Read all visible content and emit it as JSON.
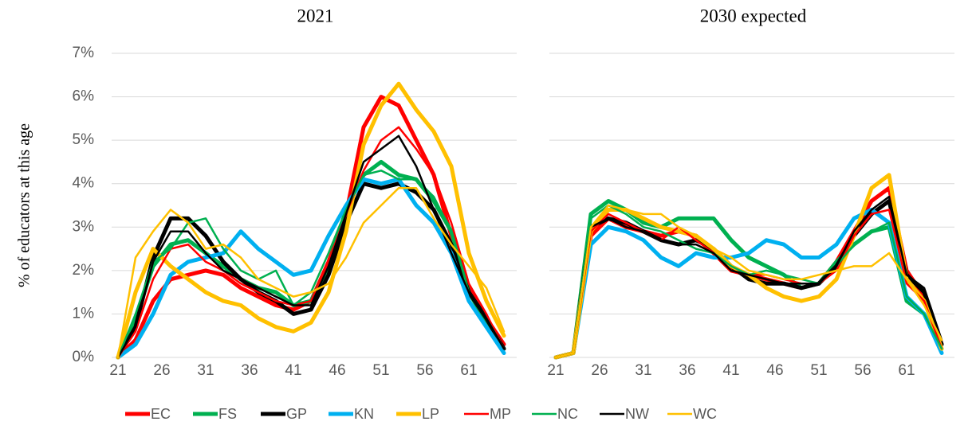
{
  "chart_data": [
    {
      "type": "line",
      "title": "2021",
      "y_label": "% of educators at this age",
      "x": [
        21,
        23,
        25,
        27,
        29,
        31,
        33,
        35,
        37,
        39,
        41,
        43,
        45,
        47,
        49,
        51,
        53,
        55,
        57,
        59,
        61,
        63,
        65
      ],
      "xlim": [
        20,
        67
      ],
      "xticks": [
        21,
        26,
        31,
        36,
        41,
        46,
        51,
        56,
        61
      ],
      "ylim": [
        0,
        7
      ],
      "yticks": [
        {
          "value": 0,
          "label": "0%"
        },
        {
          "value": 1,
          "label": "1%"
        },
        {
          "value": 2,
          "label": "2%"
        },
        {
          "value": 3,
          "label": "3%"
        },
        {
          "value": 4,
          "label": "4%"
        },
        {
          "value": 5,
          "label": "5%"
        },
        {
          "value": 6,
          "label": "6%"
        },
        {
          "value": 7,
          "label": "7%"
        }
      ],
      "grid": true,
      "series": [
        {
          "name": "EC",
          "color": "#ff0000",
          "width": 5,
          "values": [
            0,
            0.4,
            1.3,
            1.8,
            1.9,
            2.0,
            1.9,
            1.6,
            1.4,
            1.2,
            1.1,
            1.3,
            2.2,
            3.3,
            5.3,
            6.0,
            5.8,
            5.0,
            4.2,
            2.8,
            1.6,
            0.9,
            0.3
          ]
        },
        {
          "name": "FS",
          "color": "#00b050",
          "width": 5,
          "values": [
            0,
            0.9,
            2.1,
            2.6,
            2.7,
            2.4,
            2.1,
            1.8,
            1.6,
            1.5,
            1.2,
            1.3,
            2.1,
            3.4,
            4.2,
            4.5,
            4.2,
            4.1,
            3.6,
            2.9,
            1.5,
            0.8,
            0.2
          ]
        },
        {
          "name": "GP",
          "color": "#000000",
          "width": 5,
          "values": [
            0,
            0.7,
            2.3,
            3.2,
            3.2,
            2.8,
            2.2,
            1.8,
            1.5,
            1.3,
            1.0,
            1.1,
            1.9,
            3.1,
            4.0,
            3.9,
            4.0,
            3.8,
            3.4,
            2.6,
            1.5,
            0.9,
            0.2
          ]
        },
        {
          "name": "KN",
          "color": "#00b0f0",
          "width": 5,
          "values": [
            0,
            0.3,
            1.0,
            1.9,
            2.2,
            2.3,
            2.4,
            2.9,
            2.5,
            2.2,
            1.9,
            2.0,
            2.8,
            3.5,
            4.1,
            4.0,
            4.1,
            3.5,
            3.1,
            2.4,
            1.3,
            0.7,
            0.1
          ]
        },
        {
          "name": "LP",
          "color": "#ffc000",
          "width": 5,
          "values": [
            0,
            1.5,
            2.5,
            2.1,
            1.8,
            1.5,
            1.3,
            1.2,
            0.9,
            0.7,
            0.6,
            0.8,
            1.5,
            2.9,
            4.9,
            5.8,
            6.3,
            5.7,
            5.2,
            4.4,
            2.4,
            1.3,
            0.5
          ]
        },
        {
          "name": "MP",
          "color": "#ff0000",
          "width": 2.5,
          "values": [
            0,
            0.6,
            1.8,
            2.5,
            2.6,
            2.2,
            2.0,
            1.7,
            1.5,
            1.3,
            1.2,
            1.3,
            2.2,
            3.3,
            4.3,
            5.0,
            5.3,
            4.8,
            4.2,
            3.1,
            1.7,
            1.0,
            0.2
          ]
        },
        {
          "name": "NC",
          "color": "#00b050",
          "width": 2.5,
          "values": [
            0,
            1.0,
            2.2,
            2.5,
            3.1,
            3.2,
            2.5,
            2.0,
            1.8,
            2.0,
            1.2,
            1.5,
            2.4,
            3.4,
            4.2,
            4.3,
            4.1,
            4.1,
            3.7,
            2.9,
            1.5,
            0.9,
            0.2
          ]
        },
        {
          "name": "NW",
          "color": "#000000",
          "width": 2.5,
          "values": [
            0,
            0.7,
            2.2,
            2.9,
            2.9,
            2.4,
            2.0,
            1.8,
            1.6,
            1.4,
            1.2,
            1.2,
            2.1,
            3.3,
            4.5,
            4.8,
            5.1,
            4.4,
            3.4,
            2.4,
            1.5,
            0.9,
            0.2
          ]
        },
        {
          "name": "WC",
          "color": "#ffc000",
          "width": 2.5,
          "values": [
            0,
            2.3,
            2.9,
            3.4,
            3.1,
            2.5,
            2.6,
            2.3,
            1.8,
            1.6,
            1.4,
            1.5,
            1.7,
            2.3,
            3.1,
            3.5,
            3.9,
            3.9,
            3.2,
            2.6,
            2.1,
            1.6,
            0.6
          ]
        }
      ]
    },
    {
      "type": "line",
      "title": "2030 expected",
      "x": [
        21,
        23,
        25,
        27,
        29,
        31,
        33,
        35,
        37,
        39,
        41,
        43,
        45,
        47,
        49,
        51,
        53,
        55,
        57,
        59,
        61,
        63,
        65
      ],
      "xlim": [
        20,
        67
      ],
      "xticks": [
        21,
        26,
        31,
        36,
        41,
        46,
        51,
        56,
        61
      ],
      "ylim": [
        0,
        7
      ],
      "yticks": [
        0,
        1,
        2,
        3,
        4,
        5,
        6,
        7
      ],
      "grid": true,
      "series": [
        {
          "color": "#ff0000",
          "width": 5,
          "values": [
            0,
            0.1,
            2.8,
            3.2,
            3.0,
            2.9,
            2.8,
            2.9,
            2.8,
            2.4,
            2.0,
            1.9,
            1.8,
            1.7,
            1.6,
            1.7,
            2.2,
            2.9,
            3.6,
            3.9,
            2.0,
            1.4,
            0.3
          ]
        },
        {
          "color": "#00b050",
          "width": 5,
          "values": [
            0,
            0.1,
            3.3,
            3.6,
            3.4,
            3.1,
            3.0,
            3.2,
            3.2,
            3.2,
            2.7,
            2.3,
            2.1,
            1.9,
            1.6,
            1.7,
            2.2,
            2.6,
            2.9,
            3.0,
            1.3,
            1.0,
            0.2
          ]
        },
        {
          "color": "#000000",
          "width": 5,
          "values": [
            0,
            0.1,
            3.0,
            3.2,
            3.1,
            2.9,
            2.7,
            2.6,
            2.7,
            2.5,
            2.1,
            1.8,
            1.7,
            1.7,
            1.6,
            1.7,
            2.1,
            2.8,
            3.3,
            3.6,
            1.9,
            1.5,
            0.3
          ]
        },
        {
          "color": "#00b0f0",
          "width": 5,
          "values": [
            0,
            0.1,
            2.6,
            3.0,
            2.9,
            2.7,
            2.3,
            2.1,
            2.4,
            2.3,
            2.3,
            2.4,
            2.7,
            2.6,
            2.3,
            2.3,
            2.6,
            3.2,
            3.4,
            3.1,
            1.4,
            1.0,
            0.1
          ]
        },
        {
          "color": "#ffc000",
          "width": 5,
          "values": [
            0,
            0.1,
            2.9,
            3.4,
            3.4,
            3.2,
            3.0,
            2.9,
            2.8,
            2.5,
            2.1,
            1.9,
            1.6,
            1.4,
            1.3,
            1.4,
            1.8,
            2.8,
            3.9,
            4.2,
            1.8,
            1.3,
            0.2
          ]
        },
        {
          "color": "#ff0000",
          "width": 2.5,
          "values": [
            0,
            0.1,
            2.9,
            3.3,
            3.1,
            2.9,
            2.7,
            3.0,
            2.7,
            2.4,
            2.0,
            1.9,
            1.9,
            1.8,
            1.7,
            1.7,
            2.0,
            2.8,
            3.3,
            3.4,
            1.7,
            1.3,
            0.2
          ]
        },
        {
          "color": "#00b050",
          "width": 2.5,
          "values": [
            0,
            0.1,
            3.2,
            3.5,
            3.3,
            3.0,
            2.9,
            2.7,
            2.5,
            2.4,
            2.1,
            1.9,
            2.0,
            1.9,
            1.8,
            1.7,
            2.1,
            2.6,
            2.9,
            3.1,
            1.4,
            1.0,
            0.2
          ]
        },
        {
          "color": "#000000",
          "width": 2.5,
          "values": [
            0,
            0.1,
            3.0,
            3.2,
            3.0,
            2.9,
            2.7,
            2.6,
            2.6,
            2.4,
            2.0,
            1.9,
            1.8,
            1.7,
            1.7,
            1.7,
            2.1,
            2.9,
            3.4,
            3.7,
            1.9,
            1.6,
            0.4
          ]
        },
        {
          "color": "#ffc000",
          "width": 2.5,
          "values": [
            0,
            0.1,
            3.0,
            3.5,
            3.4,
            3.3,
            3.3,
            3.0,
            2.8,
            2.5,
            2.3,
            2.0,
            1.9,
            1.8,
            1.8,
            1.9,
            2.0,
            2.1,
            2.1,
            2.4,
            1.8,
            1.2,
            0.4
          ]
        }
      ]
    }
  ]
}
